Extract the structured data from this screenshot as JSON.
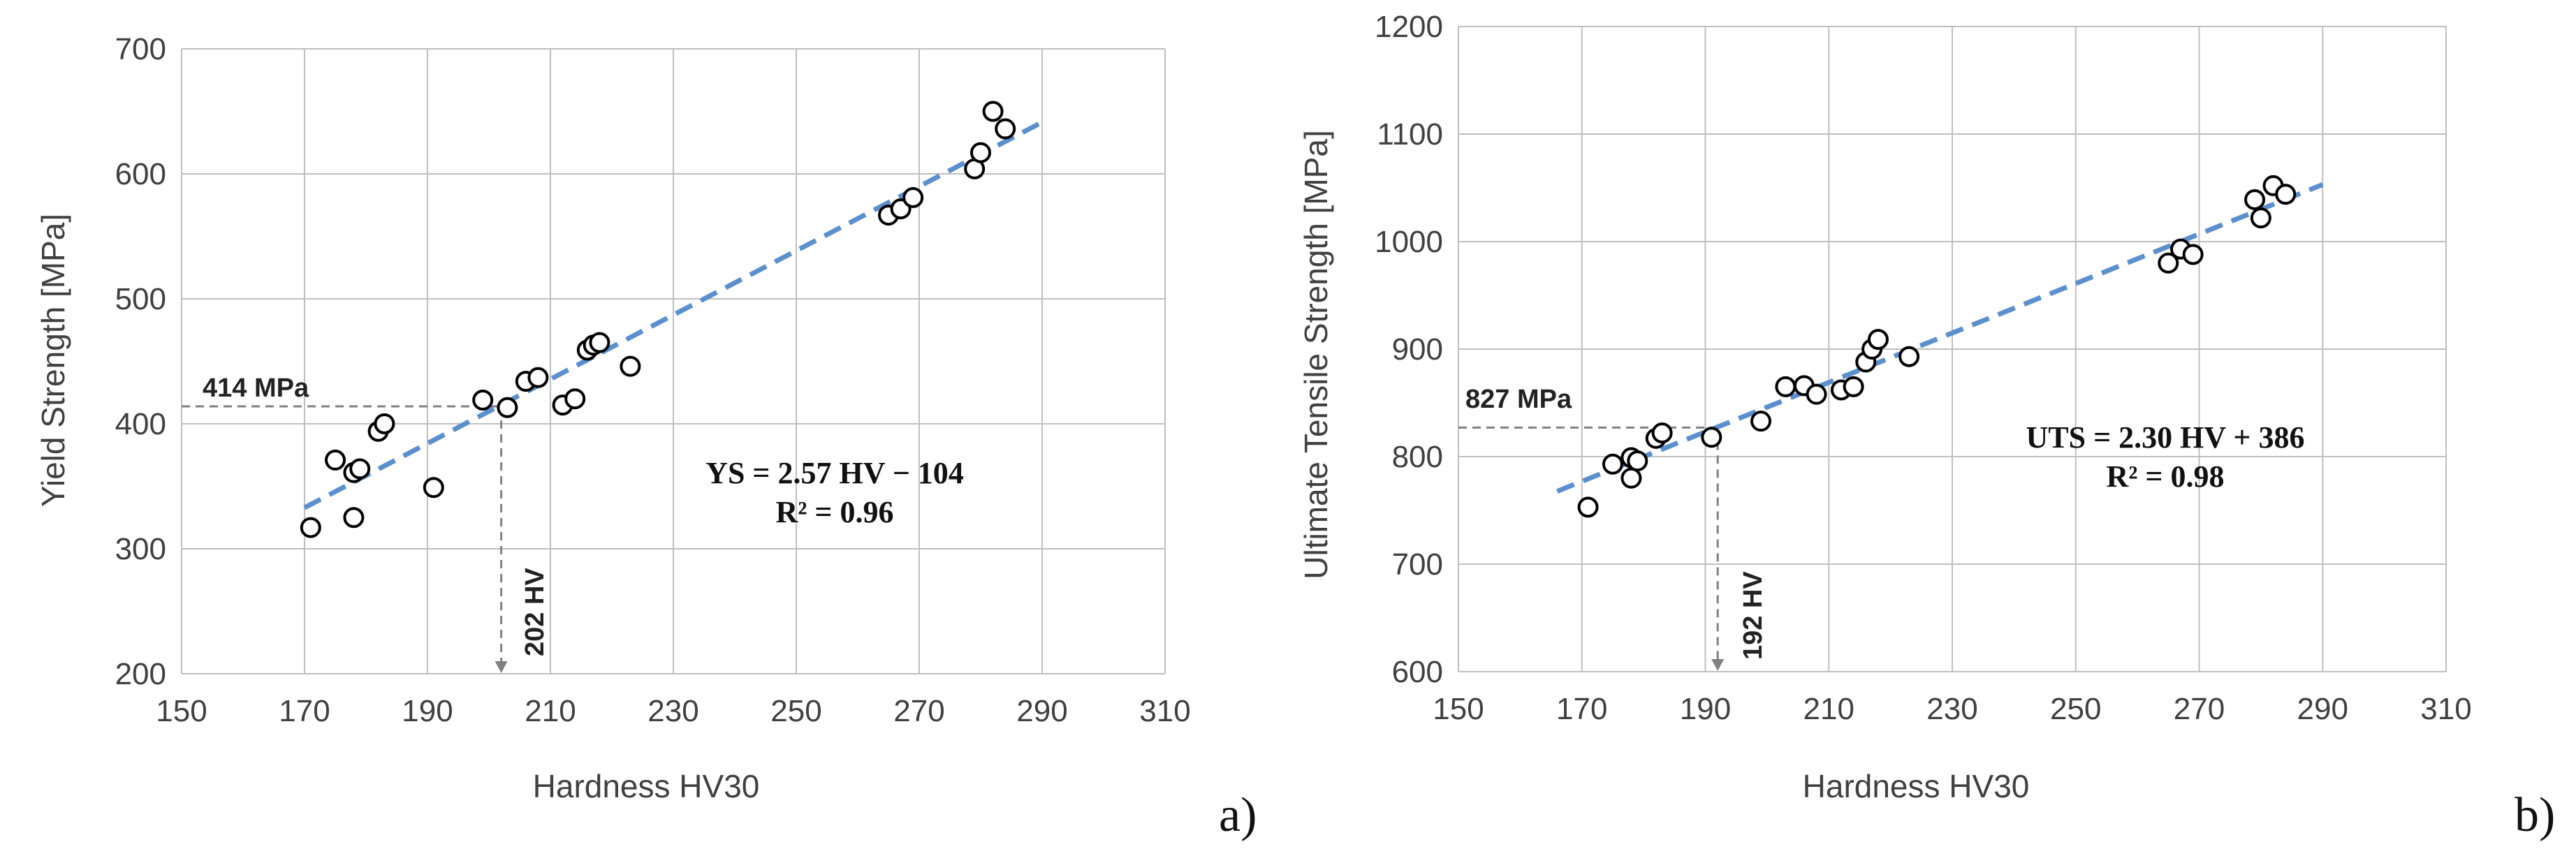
{
  "chart_data": [
    {
      "type": "scatter",
      "panel_label": "a)",
      "xlabel": "Hardness HV30",
      "ylabel": "Yield Strength [MPa]",
      "xlim": [
        150,
        310
      ],
      "ylim": [
        200,
        700
      ],
      "xticks": [
        150,
        170,
        190,
        210,
        230,
        250,
        270,
        290,
        310
      ],
      "yticks": [
        200,
        300,
        400,
        500,
        600,
        700
      ],
      "grid": true,
      "points": [
        {
          "x": 171,
          "y": 317
        },
        {
          "x": 175,
          "y": 371
        },
        {
          "x": 178,
          "y": 325
        },
        {
          "x": 178,
          "y": 361
        },
        {
          "x": 179,
          "y": 364
        },
        {
          "x": 182,
          "y": 394
        },
        {
          "x": 183,
          "y": 400
        },
        {
          "x": 191,
          "y": 349
        },
        {
          "x": 199,
          "y": 419
        },
        {
          "x": 203,
          "y": 413
        },
        {
          "x": 206,
          "y": 434
        },
        {
          "x": 208,
          "y": 437
        },
        {
          "x": 212,
          "y": 415
        },
        {
          "x": 214,
          "y": 420
        },
        {
          "x": 216,
          "y": 459
        },
        {
          "x": 217,
          "y": 463
        },
        {
          "x": 218,
          "y": 465
        },
        {
          "x": 223,
          "y": 446
        },
        {
          "x": 265,
          "y": 567
        },
        {
          "x": 267,
          "y": 572
        },
        {
          "x": 269,
          "y": 581
        },
        {
          "x": 279,
          "y": 604
        },
        {
          "x": 280,
          "y": 617
        },
        {
          "x": 282,
          "y": 650
        },
        {
          "x": 284,
          "y": 636
        }
      ],
      "trendline": {
        "slope": 2.57,
        "intercept": -104,
        "x_range": [
          170,
          290
        ],
        "color": "#5b8fcd"
      },
      "equation_text": "YS = 2.57 HV − 104",
      "r2_text": "R² = 0.96",
      "marker": {
        "y_value": 414,
        "x_value": 202,
        "y_label": "414 MPa",
        "x_label": "202 HV"
      }
    },
    {
      "type": "scatter",
      "panel_label": "b)",
      "xlabel": "Hardness HV30",
      "ylabel": "Ultimate Tensile Strength [MPa]",
      "xlim": [
        150,
        310
      ],
      "ylim": [
        600,
        1200
      ],
      "xticks": [
        150,
        170,
        190,
        210,
        230,
        250,
        270,
        290,
        310
      ],
      "yticks": [
        600,
        700,
        800,
        900,
        1000,
        1100,
        1200
      ],
      "grid": true,
      "points": [
        {
          "x": 171,
          "y": 753
        },
        {
          "x": 175,
          "y": 793
        },
        {
          "x": 178,
          "y": 780
        },
        {
          "x": 178,
          "y": 799
        },
        {
          "x": 179,
          "y": 796
        },
        {
          "x": 182,
          "y": 817
        },
        {
          "x": 183,
          "y": 822
        },
        {
          "x": 191,
          "y": 818
        },
        {
          "x": 199,
          "y": 833
        },
        {
          "x": 203,
          "y": 865
        },
        {
          "x": 206,
          "y": 866
        },
        {
          "x": 208,
          "y": 858
        },
        {
          "x": 212,
          "y": 862
        },
        {
          "x": 214,
          "y": 865
        },
        {
          "x": 216,
          "y": 888
        },
        {
          "x": 217,
          "y": 900
        },
        {
          "x": 218,
          "y": 909
        },
        {
          "x": 223,
          "y": 893
        },
        {
          "x": 265,
          "y": 980
        },
        {
          "x": 267,
          "y": 993
        },
        {
          "x": 269,
          "y": 988
        },
        {
          "x": 279,
          "y": 1039
        },
        {
          "x": 280,
          "y": 1022
        },
        {
          "x": 282,
          "y": 1052
        },
        {
          "x": 284,
          "y": 1044
        }
      ],
      "trendline": {
        "slope": 2.3,
        "intercept": 386,
        "x_range": [
          166,
          290
        ],
        "color": "#5b8fcd"
      },
      "equation_text": "UTS = 2.30 HV + 386",
      "r2_text": "R² = 0.98",
      "marker": {
        "y_value": 827,
        "x_value": 192,
        "y_label": "827 MPa",
        "x_label": "192 HV"
      }
    }
  ]
}
